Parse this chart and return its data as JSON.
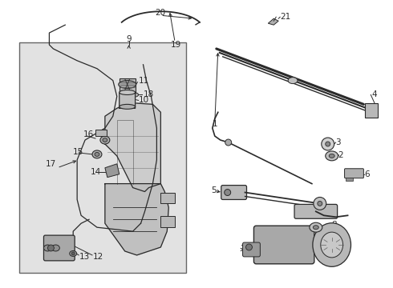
{
  "bg": "#f5f5f5",
  "white": "#ffffff",
  "lc": "#2a2a2a",
  "gray_light": "#d8d8d8",
  "gray_med": "#b0b0b0",
  "gray_dark": "#888888",
  "box_bg": "#e0e0e0",
  "box_border": "#555555",
  "label_fs": 7.5,
  "fig_w": 4.9,
  "fig_h": 3.6,
  "dpi": 100
}
